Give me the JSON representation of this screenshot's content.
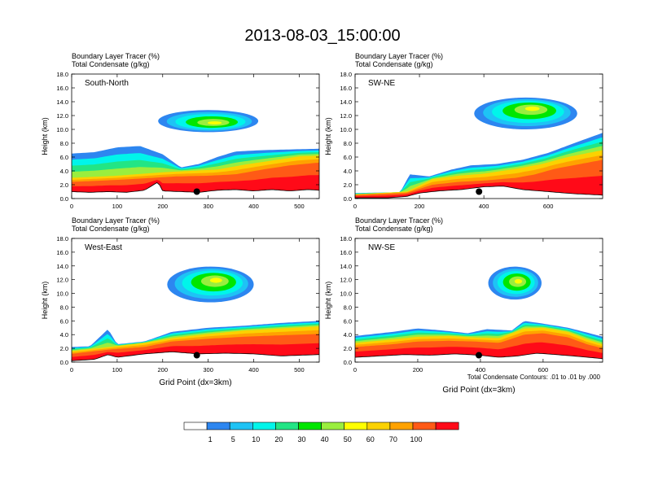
{
  "title": "2013-08-03_15:00:00",
  "panel_label_1": "Boundary Layer Tracer   (%)",
  "panel_label_2": "Total Condensate   (g/kg)",
  "ylabel": "Height (km)",
  "xlabel": "Grid Point (dx=3km)",
  "contour_note": "Total Condensate Contours: .01 to .01 by .000",
  "colorbar": {
    "colors": [
      "#ffffff",
      "#2d86f0",
      "#1ec3f5",
      "#00f5ea",
      "#22e585",
      "#00e600",
      "#9aee3e",
      "#ffff00",
      "#fbd201",
      "#ffa200",
      "#ff5a16",
      "#ff0a18"
    ],
    "labels": [
      "1",
      "5",
      "10",
      "20",
      "30",
      "40",
      "50",
      "60",
      "70",
      "100"
    ]
  },
  "chart_data": [
    {
      "type": "heatmap",
      "name": "South-North",
      "xlim": [
        0,
        544
      ],
      "xticks": [
        "0",
        "100",
        "200",
        "300",
        "400",
        "500"
      ],
      "ylim": [
        0,
        18
      ],
      "yticks": [
        "0.0",
        "2.0",
        "4.0",
        "6.0",
        "8.0",
        "10.0",
        "12.0",
        "14.0",
        "16.0",
        "18.0"
      ],
      "marker": {
        "x": 275,
        "y": 1.0
      },
      "terrain": [
        [
          0,
          1.3
        ],
        [
          40,
          1.2
        ],
        [
          80,
          1.3
        ],
        [
          120,
          1.2
        ],
        [
          160,
          1.5
        ],
        [
          190,
          2.7
        ],
        [
          200,
          1.4
        ],
        [
          240,
          1.3
        ],
        [
          280,
          1.2
        ],
        [
          320,
          1.5
        ],
        [
          360,
          1.6
        ],
        [
          400,
          1.4
        ],
        [
          440,
          1.6
        ],
        [
          480,
          1.4
        ],
        [
          520,
          1.6
        ],
        [
          544,
          1.5
        ]
      ],
      "bl_top": [
        [
          0,
          6.5
        ],
        [
          50,
          6.7
        ],
        [
          100,
          7.4
        ],
        [
          150,
          7.6
        ],
        [
          200,
          6.4
        ],
        [
          240,
          4.5
        ],
        [
          280,
          5.0
        ],
        [
          320,
          6.0
        ],
        [
          360,
          6.8
        ],
        [
          420,
          7.0
        ],
        [
          480,
          7.1
        ],
        [
          544,
          7.2
        ]
      ],
      "red_top": [
        [
          0,
          2.4
        ],
        [
          100,
          2.7
        ],
        [
          180,
          3.0
        ],
        [
          230,
          3.2
        ],
        [
          300,
          3.3
        ],
        [
          360,
          3.5
        ],
        [
          420,
          4.2
        ],
        [
          480,
          4.8
        ],
        [
          544,
          5.2
        ]
      ],
      "orange_top": [
        [
          0,
          3.0
        ],
        [
          100,
          3.3
        ],
        [
          200,
          3.8
        ],
        [
          260,
          4.0
        ],
        [
          320,
          4.2
        ],
        [
          380,
          4.9
        ],
        [
          440,
          5.5
        ],
        [
          500,
          6.1
        ],
        [
          544,
          6.2
        ]
      ],
      "cloud": {
        "cx": 300,
        "cy": 11.2,
        "rx": 110,
        "ry": 1.6,
        "core": 10.9
      }
    },
    {
      "type": "heatmap",
      "name": "SW-NE",
      "xlim": [
        0,
        769
      ],
      "xticks": [
        "0",
        "200",
        "400",
        "600"
      ],
      "ylim": [
        0,
        18
      ],
      "yticks": [
        "0.0",
        "2.0",
        "4.0",
        "6.0",
        "8.0",
        "10.0",
        "12.0",
        "14.0",
        "16.0",
        "18.0"
      ],
      "marker": {
        "x": 385,
        "y": 1.0
      },
      "terrain": [
        [
          0,
          0.4
        ],
        [
          100,
          0.4
        ],
        [
          160,
          0.6
        ],
        [
          200,
          1.1
        ],
        [
          260,
          1.4
        ],
        [
          330,
          1.6
        ],
        [
          400,
          2.0
        ],
        [
          460,
          2.1
        ],
        [
          520,
          1.6
        ],
        [
          600,
          1.3
        ],
        [
          680,
          1.0
        ],
        [
          769,
          0.8
        ]
      ],
      "bl_top": [
        [
          0,
          0.8
        ],
        [
          140,
          0.9
        ],
        [
          170,
          3.5
        ],
        [
          230,
          3.2
        ],
        [
          300,
          4.2
        ],
        [
          360,
          4.8
        ],
        [
          440,
          5.0
        ],
        [
          520,
          5.6
        ],
        [
          600,
          6.6
        ],
        [
          680,
          8.0
        ],
        [
          769,
          9.5
        ]
      ],
      "red_top": [
        [
          0,
          0.5
        ],
        [
          160,
          0.8
        ],
        [
          240,
          2.0
        ],
        [
          320,
          2.4
        ],
        [
          400,
          2.6
        ],
        [
          500,
          3.0
        ],
        [
          560,
          3.5
        ],
        [
          620,
          4.3
        ],
        [
          700,
          5.0
        ],
        [
          769,
          5.6
        ]
      ],
      "orange_top": [
        [
          0,
          0.6
        ],
        [
          160,
          1.0
        ],
        [
          240,
          2.8
        ],
        [
          320,
          3.3
        ],
        [
          400,
          3.6
        ],
        [
          500,
          4.3
        ],
        [
          580,
          5.0
        ],
        [
          660,
          6.0
        ],
        [
          769,
          7.0
        ]
      ],
      "cloud": {
        "cx": 530,
        "cy": 12.3,
        "rx": 160,
        "ry": 2.3,
        "core": 13.1
      }
    },
    {
      "type": "heatmap",
      "name": "West-East",
      "xlim": [
        0,
        544
      ],
      "xticks": [
        "0",
        "100",
        "200",
        "300",
        "400",
        "500"
      ],
      "ylim": [
        0,
        18
      ],
      "yticks": [
        "0.0",
        "2.0",
        "4.0",
        "6.0",
        "8.0",
        "10.0",
        "12.0",
        "14.0",
        "16.0",
        "18.0"
      ],
      "marker": {
        "x": 275,
        "y": 1.0
      },
      "terrain": [
        [
          0,
          0.5
        ],
        [
          50,
          0.7
        ],
        [
          80,
          1.4
        ],
        [
          100,
          1.0
        ],
        [
          160,
          1.5
        ],
        [
          220,
          1.8
        ],
        [
          280,
          1.5
        ],
        [
          340,
          1.6
        ],
        [
          400,
          1.5
        ],
        [
          460,
          1.2
        ],
        [
          544,
          1.4
        ]
      ],
      "bl_top": [
        [
          0,
          2.2
        ],
        [
          40,
          2.3
        ],
        [
          80,
          4.8
        ],
        [
          100,
          2.6
        ],
        [
          160,
          3.0
        ],
        [
          220,
          4.4
        ],
        [
          300,
          5.0
        ],
        [
          380,
          5.3
        ],
        [
          460,
          5.7
        ],
        [
          544,
          6.0
        ]
      ],
      "red_top": [
        [
          0,
          1.2
        ],
        [
          80,
          1.8
        ],
        [
          160,
          2.2
        ],
        [
          220,
          3.0
        ],
        [
          300,
          3.4
        ],
        [
          380,
          3.7
        ],
        [
          460,
          3.9
        ],
        [
          544,
          4.1
        ]
      ],
      "orange_top": [
        [
          0,
          1.6
        ],
        [
          80,
          2.2
        ],
        [
          160,
          2.8
        ],
        [
          220,
          3.5
        ],
        [
          300,
          4.1
        ],
        [
          380,
          4.6
        ],
        [
          460,
          4.9
        ],
        [
          544,
          5.2
        ]
      ],
      "cloud": {
        "cx": 305,
        "cy": 11.3,
        "rx": 95,
        "ry": 2.6,
        "core": 12.0
      }
    },
    {
      "type": "heatmap",
      "name": "NW-SE",
      "xlim": [
        0,
        790
      ],
      "xticks": [
        "0",
        "200",
        "400",
        "600"
      ],
      "ylim": [
        0,
        18
      ],
      "yticks": [
        "0.0",
        "2.0",
        "4.0",
        "6.0",
        "8.0",
        "10.0",
        "12.0",
        "14.0",
        "16.0",
        "18.0"
      ],
      "marker": {
        "x": 395,
        "y": 1.0
      },
      "terrain": [
        [
          0,
          1.0
        ],
        [
          80,
          1.2
        ],
        [
          160,
          1.4
        ],
        [
          240,
          1.3
        ],
        [
          320,
          1.5
        ],
        [
          400,
          1.3
        ],
        [
          460,
          1.0
        ],
        [
          520,
          1.2
        ],
        [
          580,
          1.6
        ],
        [
          640,
          1.4
        ],
        [
          720,
          1.1
        ],
        [
          790,
          0.8
        ]
      ],
      "bl_top": [
        [
          0,
          3.8
        ],
        [
          120,
          4.4
        ],
        [
          200,
          4.9
        ],
        [
          280,
          4.6
        ],
        [
          360,
          4.2
        ],
        [
          420,
          4.8
        ],
        [
          500,
          4.6
        ],
        [
          540,
          6.0
        ],
        [
          600,
          5.6
        ],
        [
          680,
          5.0
        ],
        [
          740,
          4.3
        ],
        [
          790,
          3.7
        ]
      ],
      "red_top": [
        [
          0,
          2.2
        ],
        [
          120,
          2.6
        ],
        [
          200,
          3.0
        ],
        [
          300,
          3.1
        ],
        [
          380,
          3.0
        ],
        [
          460,
          2.8
        ],
        [
          540,
          4.0
        ],
        [
          600,
          4.2
        ],
        [
          680,
          3.6
        ],
        [
          740,
          2.6
        ],
        [
          790,
          2.0
        ]
      ],
      "orange_top": [
        [
          0,
          2.8
        ],
        [
          120,
          3.3
        ],
        [
          200,
          3.7
        ],
        [
          300,
          3.8
        ],
        [
          380,
          3.6
        ],
        [
          460,
          3.5
        ],
        [
          540,
          4.9
        ],
        [
          600,
          5.0
        ],
        [
          680,
          4.4
        ],
        [
          740,
          3.3
        ],
        [
          790,
          2.6
        ]
      ],
      "cloud": {
        "cx": 510,
        "cy": 11.5,
        "rx": 85,
        "ry": 2.4,
        "core": 11.8
      }
    }
  ]
}
